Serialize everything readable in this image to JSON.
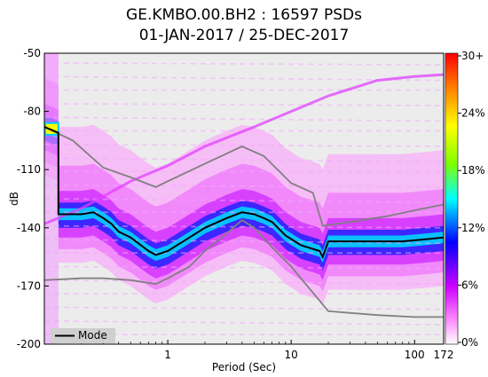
{
  "chart_data": {
    "type": "heatmap",
    "title": {
      "line1": "GE.KMBO.00.BH2 : 16597 PSDs",
      "line2": "01-JAN-2017 / 25-DEC-2017"
    },
    "xlabel": "Period (Sec)",
    "ylabel": "dB",
    "x_scale": "log",
    "xlim": [
      0.1,
      172
    ],
    "ylim": [
      -200,
      -50
    ],
    "x_ticks": [
      1,
      10,
      100,
      172
    ],
    "x_tick_labels": [
      "1",
      "10",
      "100",
      "172"
    ],
    "y_ticks": [
      -50,
      -80,
      -110,
      -140,
      -170,
      -200
    ],
    "y_tick_labels": [
      "-50",
      "-80",
      "-110",
      "-140",
      "-170",
      "-200"
    ],
    "colorbar": {
      "ticks": [
        0,
        6,
        12,
        18,
        24,
        30
      ],
      "tick_labels": [
        "0%",
        "6%",
        "12%",
        "18%",
        "24%",
        "30+"
      ],
      "range": [
        0,
        30
      ],
      "colormap": [
        "#ffffff",
        "#ff80ff",
        "#cc00ff",
        "#0000ff",
        "#00ffff",
        "#80ff00",
        "#ffff00",
        "#ff8000",
        "#ff0000"
      ]
    },
    "legend": {
      "label": "Mode",
      "placement": "bottom-left",
      "color": "#000000"
    },
    "mode_curve": {
      "x": [
        0.1,
        0.13,
        0.13,
        0.2,
        0.25,
        0.3,
        0.35,
        0.4,
        0.5,
        0.7,
        0.8,
        1.0,
        1.5,
        2,
        3,
        4,
        5,
        6,
        7,
        9,
        12,
        17,
        18,
        20,
        25,
        30,
        50,
        80,
        120,
        172
      ],
      "y": [
        -88,
        -91,
        -133,
        -133,
        -132,
        -135,
        -138,
        -142,
        -145,
        -152,
        -154,
        -152,
        -145,
        -140,
        -135,
        -132,
        -133,
        -135,
        -137,
        -144,
        -149,
        -152,
        -155,
        -147,
        -147,
        -147,
        -147,
        -147,
        -146,
        -145
      ]
    },
    "nhnm_curve": {
      "x": [
        0.1,
        0.2,
        0.3,
        0.5,
        0.8,
        1.0,
        1.5,
        2,
        3,
        4,
        5,
        7,
        10,
        20,
        50,
        100,
        172
      ],
      "y": [
        -167,
        -166,
        -166,
        -167,
        -169,
        -166,
        -160,
        -152,
        -143,
        -136,
        -140,
        -150,
        -160,
        -183,
        -185,
        -186,
        -186
      ]
    },
    "nlnm_curve": {
      "x": [
        0.1,
        0.17,
        0.3,
        0.5,
        0.8,
        1.0,
        2,
        4,
        6,
        10,
        15,
        18,
        30,
        60,
        100,
        172
      ],
      "y": [
        -88,
        -95,
        -109,
        -114,
        -119,
        -116,
        -107,
        -98,
        -103,
        -117,
        -122,
        -139,
        -137,
        -134,
        -131,
        -128
      ]
    },
    "outlier_line": {
      "x": [
        0.1,
        0.2,
        0.5,
        1,
        2,
        5,
        10,
        20,
        50,
        100,
        172
      ],
      "y": [
        -138,
        -130,
        -116,
        -108,
        -98,
        -88,
        -80,
        -72,
        -64,
        -62,
        -61
      ]
    }
  }
}
